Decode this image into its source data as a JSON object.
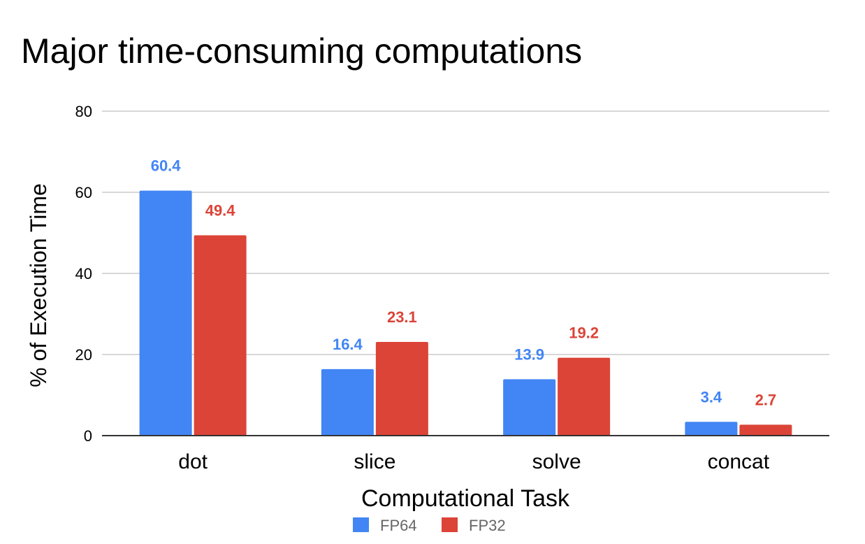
{
  "chart_data": {
    "type": "bar",
    "title": "Major time-consuming computations",
    "xlabel": "Computational Task",
    "ylabel": "% of Execution Time",
    "categories": [
      "dot",
      "slice",
      "solve",
      "concat"
    ],
    "series": [
      {
        "name": "FP64",
        "color": "#4285f4",
        "values": [
          60.4,
          16.4,
          13.9,
          3.4
        ],
        "labels": [
          "60.4",
          "16.4",
          "13.9",
          "3.4"
        ]
      },
      {
        "name": "FP32",
        "color": "#db4437",
        "values": [
          49.4,
          23.1,
          19.2,
          2.7
        ],
        "labels": [
          "49.4",
          "23.1",
          "19.2",
          "2.7"
        ]
      }
    ],
    "ylim": [
      0,
      80
    ],
    "yticks": [
      "0",
      "20",
      "40",
      "60",
      "80"
    ],
    "grid": true,
    "legend_position": "bottom"
  }
}
